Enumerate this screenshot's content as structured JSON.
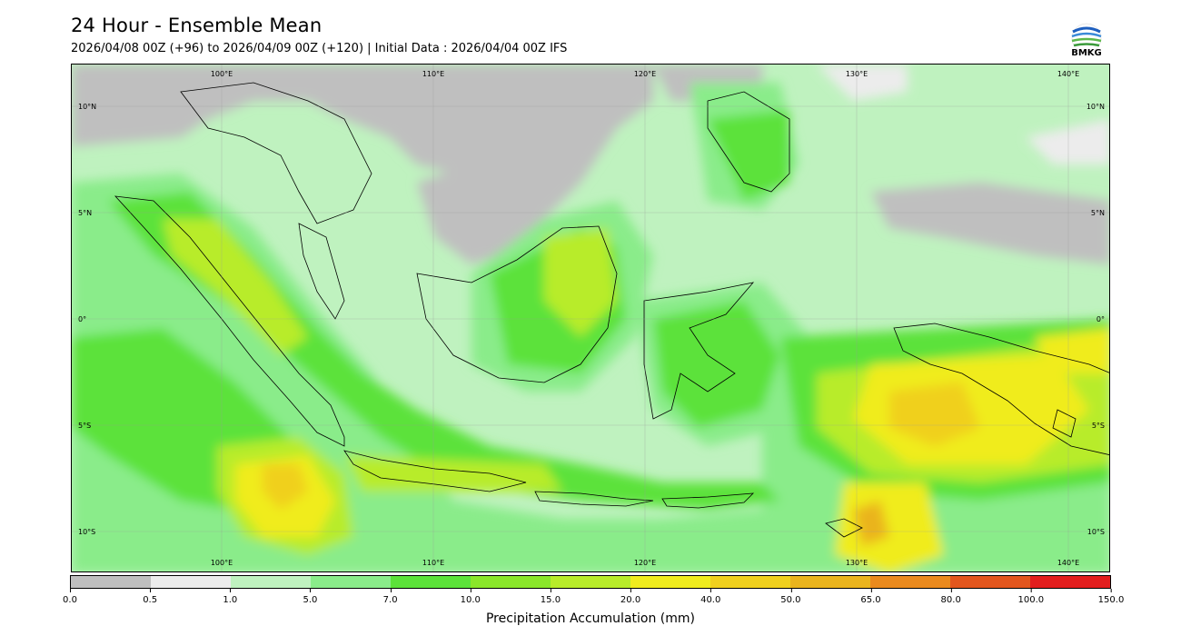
{
  "header": {
    "title": "24 Hour - Ensemble Mean",
    "subtitle": "2026/04/08 00Z (+96) to 2026/04/09 00Z (+120) | Initial Data : 2026/04/04 00Z IFS"
  },
  "logo": {
    "text": "BMKG"
  },
  "map": {
    "lon_labels": [
      "100°E",
      "110°E",
      "120°E",
      "130°E",
      "140°E"
    ],
    "lat_labels": [
      "10°N",
      "5°N",
      "0°",
      "5°S",
      "10°S"
    ],
    "grid": true
  },
  "colorbar": {
    "label": "Precipitation Accumulation (mm)",
    "ticks": [
      "0.0",
      "0.5",
      "1.0",
      "5.0",
      "7.0",
      "10.0",
      "15.0",
      "20.0",
      "40.0",
      "50.0",
      "65.0",
      "80.0",
      "100.0",
      "150.0"
    ],
    "colors": [
      "#bfbfbf",
      "#ececec",
      "#bff2bf",
      "#8aec8a",
      "#5ce23a",
      "#8ae62a",
      "#b8ec2a",
      "#f0ec1e",
      "#f0d01e",
      "#eab41e",
      "#ea8a1e",
      "#e2561e",
      "#e21e1e",
      "#e21ec8"
    ]
  }
}
